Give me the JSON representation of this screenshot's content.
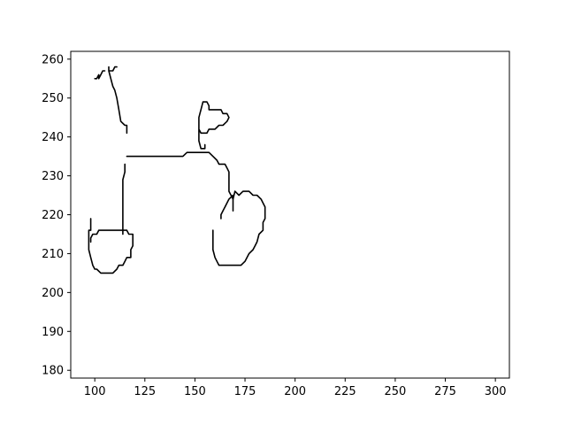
{
  "chart_data": {
    "type": "line",
    "title": "",
    "xlabel": "",
    "ylabel": "",
    "xlim": [
      88,
      307
    ],
    "ylim": [
      178,
      262
    ],
    "grid": false,
    "legend": "none",
    "x_ticks": [
      100,
      125,
      150,
      175,
      200,
      225,
      250,
      275,
      300
    ],
    "y_ticks": [
      180,
      190,
      200,
      210,
      220,
      230,
      240,
      250,
      260
    ],
    "x_tick_labels": [
      "100",
      "125",
      "150",
      "175",
      "200",
      "225",
      "250",
      "275",
      "300"
    ],
    "y_tick_labels": [
      "180",
      "190",
      "200",
      "210",
      "220",
      "230",
      "240",
      "250",
      "260"
    ],
    "line_color": "#000000",
    "series": [
      {
        "name": "front-wheel",
        "points": [
          [
            98,
            219
          ],
          [
            98,
            216
          ],
          [
            97,
            216
          ],
          [
            97,
            211
          ],
          [
            98,
            209
          ],
          [
            99,
            207
          ],
          [
            100,
            206
          ],
          [
            101,
            206
          ],
          [
            103,
            205
          ],
          [
            109,
            205
          ],
          [
            111,
            206
          ],
          [
            112,
            207
          ],
          [
            114,
            207
          ],
          [
            115,
            208
          ],
          [
            116,
            209
          ],
          [
            118,
            209
          ],
          [
            118,
            211
          ],
          [
            119,
            212
          ],
          [
            119,
            215
          ],
          [
            117,
            215
          ],
          [
            116,
            216
          ],
          [
            102,
            216
          ],
          [
            101,
            215
          ],
          [
            99,
            215
          ],
          [
            98,
            214
          ],
          [
            98,
            213
          ]
        ]
      },
      {
        "name": "front-fork",
        "points": [
          [
            114,
            215
          ],
          [
            114,
            229
          ],
          [
            115,
            231
          ],
          [
            115,
            233
          ]
        ]
      },
      {
        "name": "frame",
        "points": [
          [
            116,
            235
          ],
          [
            144,
            235
          ],
          [
            146,
            236
          ],
          [
            157,
            236
          ],
          [
            159,
            235
          ],
          [
            161,
            234
          ],
          [
            162,
            233
          ],
          [
            165,
            233
          ],
          [
            166,
            232
          ],
          [
            167,
            231
          ],
          [
            167,
            226
          ],
          [
            168,
            225
          ],
          [
            169,
            224
          ],
          [
            170,
            226
          ]
        ]
      },
      {
        "name": "rear-wheel",
        "points": [
          [
            169,
            221
          ],
          [
            169,
            225
          ],
          [
            167,
            224
          ],
          [
            165,
            222
          ],
          [
            164,
            221
          ],
          [
            163,
            220
          ],
          [
            163,
            219
          ]
        ]
      },
      {
        "name": "rear-wheel-outline",
        "points": [
          [
            159,
            216
          ],
          [
            159,
            211
          ],
          [
            160,
            209
          ],
          [
            161,
            208
          ],
          [
            162,
            207
          ],
          [
            173,
            207
          ],
          [
            175,
            208
          ],
          [
            177,
            210
          ],
          [
            179,
            211
          ],
          [
            180,
            212
          ],
          [
            181,
            213
          ],
          [
            182,
            215
          ],
          [
            184,
            216
          ],
          [
            184,
            218
          ],
          [
            185,
            219
          ],
          [
            185,
            222
          ],
          [
            184,
            223
          ],
          [
            183,
            224
          ],
          [
            181,
            225
          ],
          [
            179,
            225
          ],
          [
            177,
            226
          ],
          [
            174,
            226
          ],
          [
            172,
            225
          ],
          [
            170,
            226
          ]
        ]
      },
      {
        "name": "seat",
        "points": [
          [
            155,
            238
          ],
          [
            155,
            237
          ],
          [
            153,
            237
          ],
          [
            152,
            239
          ],
          [
            152,
            245
          ],
          [
            153,
            247
          ],
          [
            154,
            249
          ],
          [
            156,
            249
          ],
          [
            157,
            248
          ],
          [
            157,
            247
          ],
          [
            163,
            247
          ],
          [
            164,
            246
          ],
          [
            166,
            246
          ],
          [
            167,
            245
          ],
          [
            166,
            244
          ],
          [
            164,
            243
          ],
          [
            162,
            243
          ],
          [
            160,
            242
          ],
          [
            157,
            242
          ],
          [
            156,
            241
          ],
          [
            153,
            241
          ],
          [
            152,
            242
          ]
        ]
      },
      {
        "name": "handlebar",
        "points": [
          [
            116,
            241
          ],
          [
            116,
            243
          ],
          [
            115,
            243
          ],
          [
            113,
            244
          ],
          [
            112,
            247
          ],
          [
            111,
            250
          ],
          [
            110,
            252
          ],
          [
            109,
            253
          ],
          [
            108,
            255
          ],
          [
            107,
            257
          ],
          [
            107,
            258
          ],
          [
            107,
            257
          ],
          [
            109,
            257
          ],
          [
            110,
            258
          ],
          [
            111,
            258
          ]
        ]
      },
      {
        "name": "handlebar-grip",
        "points": [
          [
            100,
            255
          ],
          [
            101,
            255
          ],
          [
            102,
            256
          ],
          [
            102,
            255
          ],
          [
            103,
            256
          ],
          [
            104,
            257
          ],
          [
            105,
            257
          ]
        ]
      }
    ]
  }
}
